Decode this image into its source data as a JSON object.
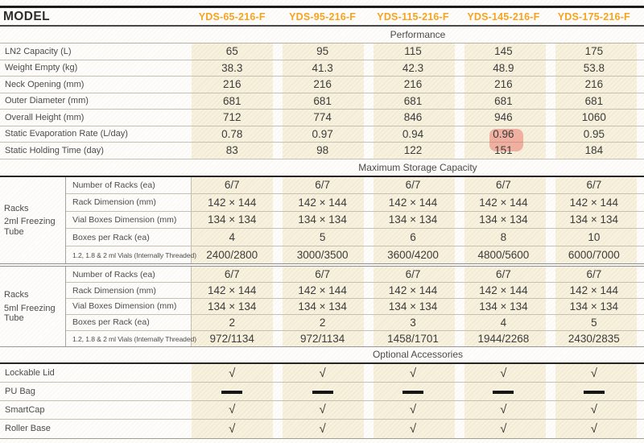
{
  "header": {
    "model_label": "MODEL",
    "models": [
      "YDS-65-216-F",
      "YDS-95-216-F",
      "YDS-115-216-F",
      "YDS-145-216-F",
      "YDS-175-216-F"
    ]
  },
  "performance": {
    "title": "Performance",
    "rows": [
      {
        "label": "LN2 Capacity (L)",
        "values": [
          "65",
          "95",
          "115",
          "145",
          "175"
        ]
      },
      {
        "label": "Weight Empty (kg)",
        "values": [
          "38.3",
          "41.3",
          "42.3",
          "48.9",
          "53.8"
        ]
      },
      {
        "label": "Neck Opening (mm)",
        "values": [
          "216",
          "216",
          "216",
          "216",
          "216"
        ]
      },
      {
        "label": "Outer Diameter (mm)",
        "values": [
          "681",
          "681",
          "681",
          "681",
          "681"
        ]
      },
      {
        "label": "Overall Height (mm)",
        "values": [
          "712",
          "774",
          "846",
          "946",
          "1060"
        ]
      },
      {
        "label": "Static Evaporation Rate (L/day)",
        "values": [
          "0.78",
          "0.97",
          "0.94",
          "0.96",
          "0.95"
        ]
      },
      {
        "label": "Static Holding Time (day)",
        "values": [
          "83",
          "98",
          "122",
          "151",
          "184"
        ]
      }
    ],
    "highlight": {
      "row_label": "Static Evaporation Rate (L/day)",
      "model": "YDS-145-216-F",
      "value": "0.96",
      "color": "rgba(232,88,80,0.42)"
    }
  },
  "storage": {
    "title": "Maximum Storage Capacity",
    "groups": [
      {
        "label_line1": "Racks",
        "label_line2": "2ml Freezing Tube",
        "rows": [
          {
            "label": "Number of Racks (ea)",
            "values": [
              "6/7",
              "6/7",
              "6/7",
              "6/7",
              "6/7"
            ]
          },
          {
            "label": "Rack Dimension (mm)",
            "values": [
              "142 × 144",
              "142 × 144",
              "142 × 144",
              "142 × 144",
              "142 × 144"
            ]
          },
          {
            "label": "Vial Boxes Dimension (mm)",
            "values": [
              "134 × 134",
              "134 × 134",
              "134 × 134",
              "134 × 134",
              "134 × 134"
            ]
          },
          {
            "label": "Boxes per Rack (ea)",
            "values": [
              "4",
              "5",
              "6",
              "8",
              "10"
            ]
          },
          {
            "label": "1.2, 1.8 & 2 ml Vials (Internally Threaded)",
            "values": [
              "2400/2800",
              "3000/3500",
              "3600/4200",
              "4800/5600",
              "6000/7000"
            ]
          }
        ]
      },
      {
        "label_line1": "Racks",
        "label_line2": "5ml Freezing Tube",
        "rows": [
          {
            "label": "Number of Racks (ea)",
            "values": [
              "6/7",
              "6/7",
              "6/7",
              "6/7",
              "6/7"
            ]
          },
          {
            "label": "Rack Dimension (mm)",
            "values": [
              "142 × 144",
              "142 × 144",
              "142 × 144",
              "142 × 144",
              "142 × 144"
            ]
          },
          {
            "label": "Vial Boxes Dimension (mm)",
            "values": [
              "134 × 134",
              "134 × 134",
              "134 × 134",
              "134 × 134",
              "134 × 134"
            ]
          },
          {
            "label": "Boxes per Rack (ea)",
            "values": [
              "2",
              "2",
              "3",
              "4",
              "5"
            ]
          },
          {
            "label": "1.2, 1.8 & 2 ml Vials (Internally Threaded)",
            "values": [
              "972/1134",
              "972/1134",
              "1458/1701",
              "1944/2268",
              "2430/2835"
            ]
          }
        ]
      }
    ]
  },
  "accessories": {
    "title": "Optional Accessories",
    "rows": [
      {
        "label": "Lockable Lid",
        "marks": [
          "check",
          "check",
          "check",
          "check",
          "check"
        ]
      },
      {
        "label": "PU Bag",
        "marks": [
          "dash",
          "dash",
          "dash",
          "dash",
          "dash"
        ]
      },
      {
        "label": "SmartCap",
        "marks": [
          "check",
          "check",
          "check",
          "check",
          "check"
        ]
      },
      {
        "label": "Roller Base",
        "marks": [
          "check",
          "check",
          "check",
          "check",
          "check"
        ]
      }
    ]
  },
  "icons": {
    "check": "√",
    "dash": "—"
  },
  "colors": {
    "accent": "#F6A41F",
    "column_beige": "#F7F1DD",
    "highlight": "#E8584F"
  }
}
